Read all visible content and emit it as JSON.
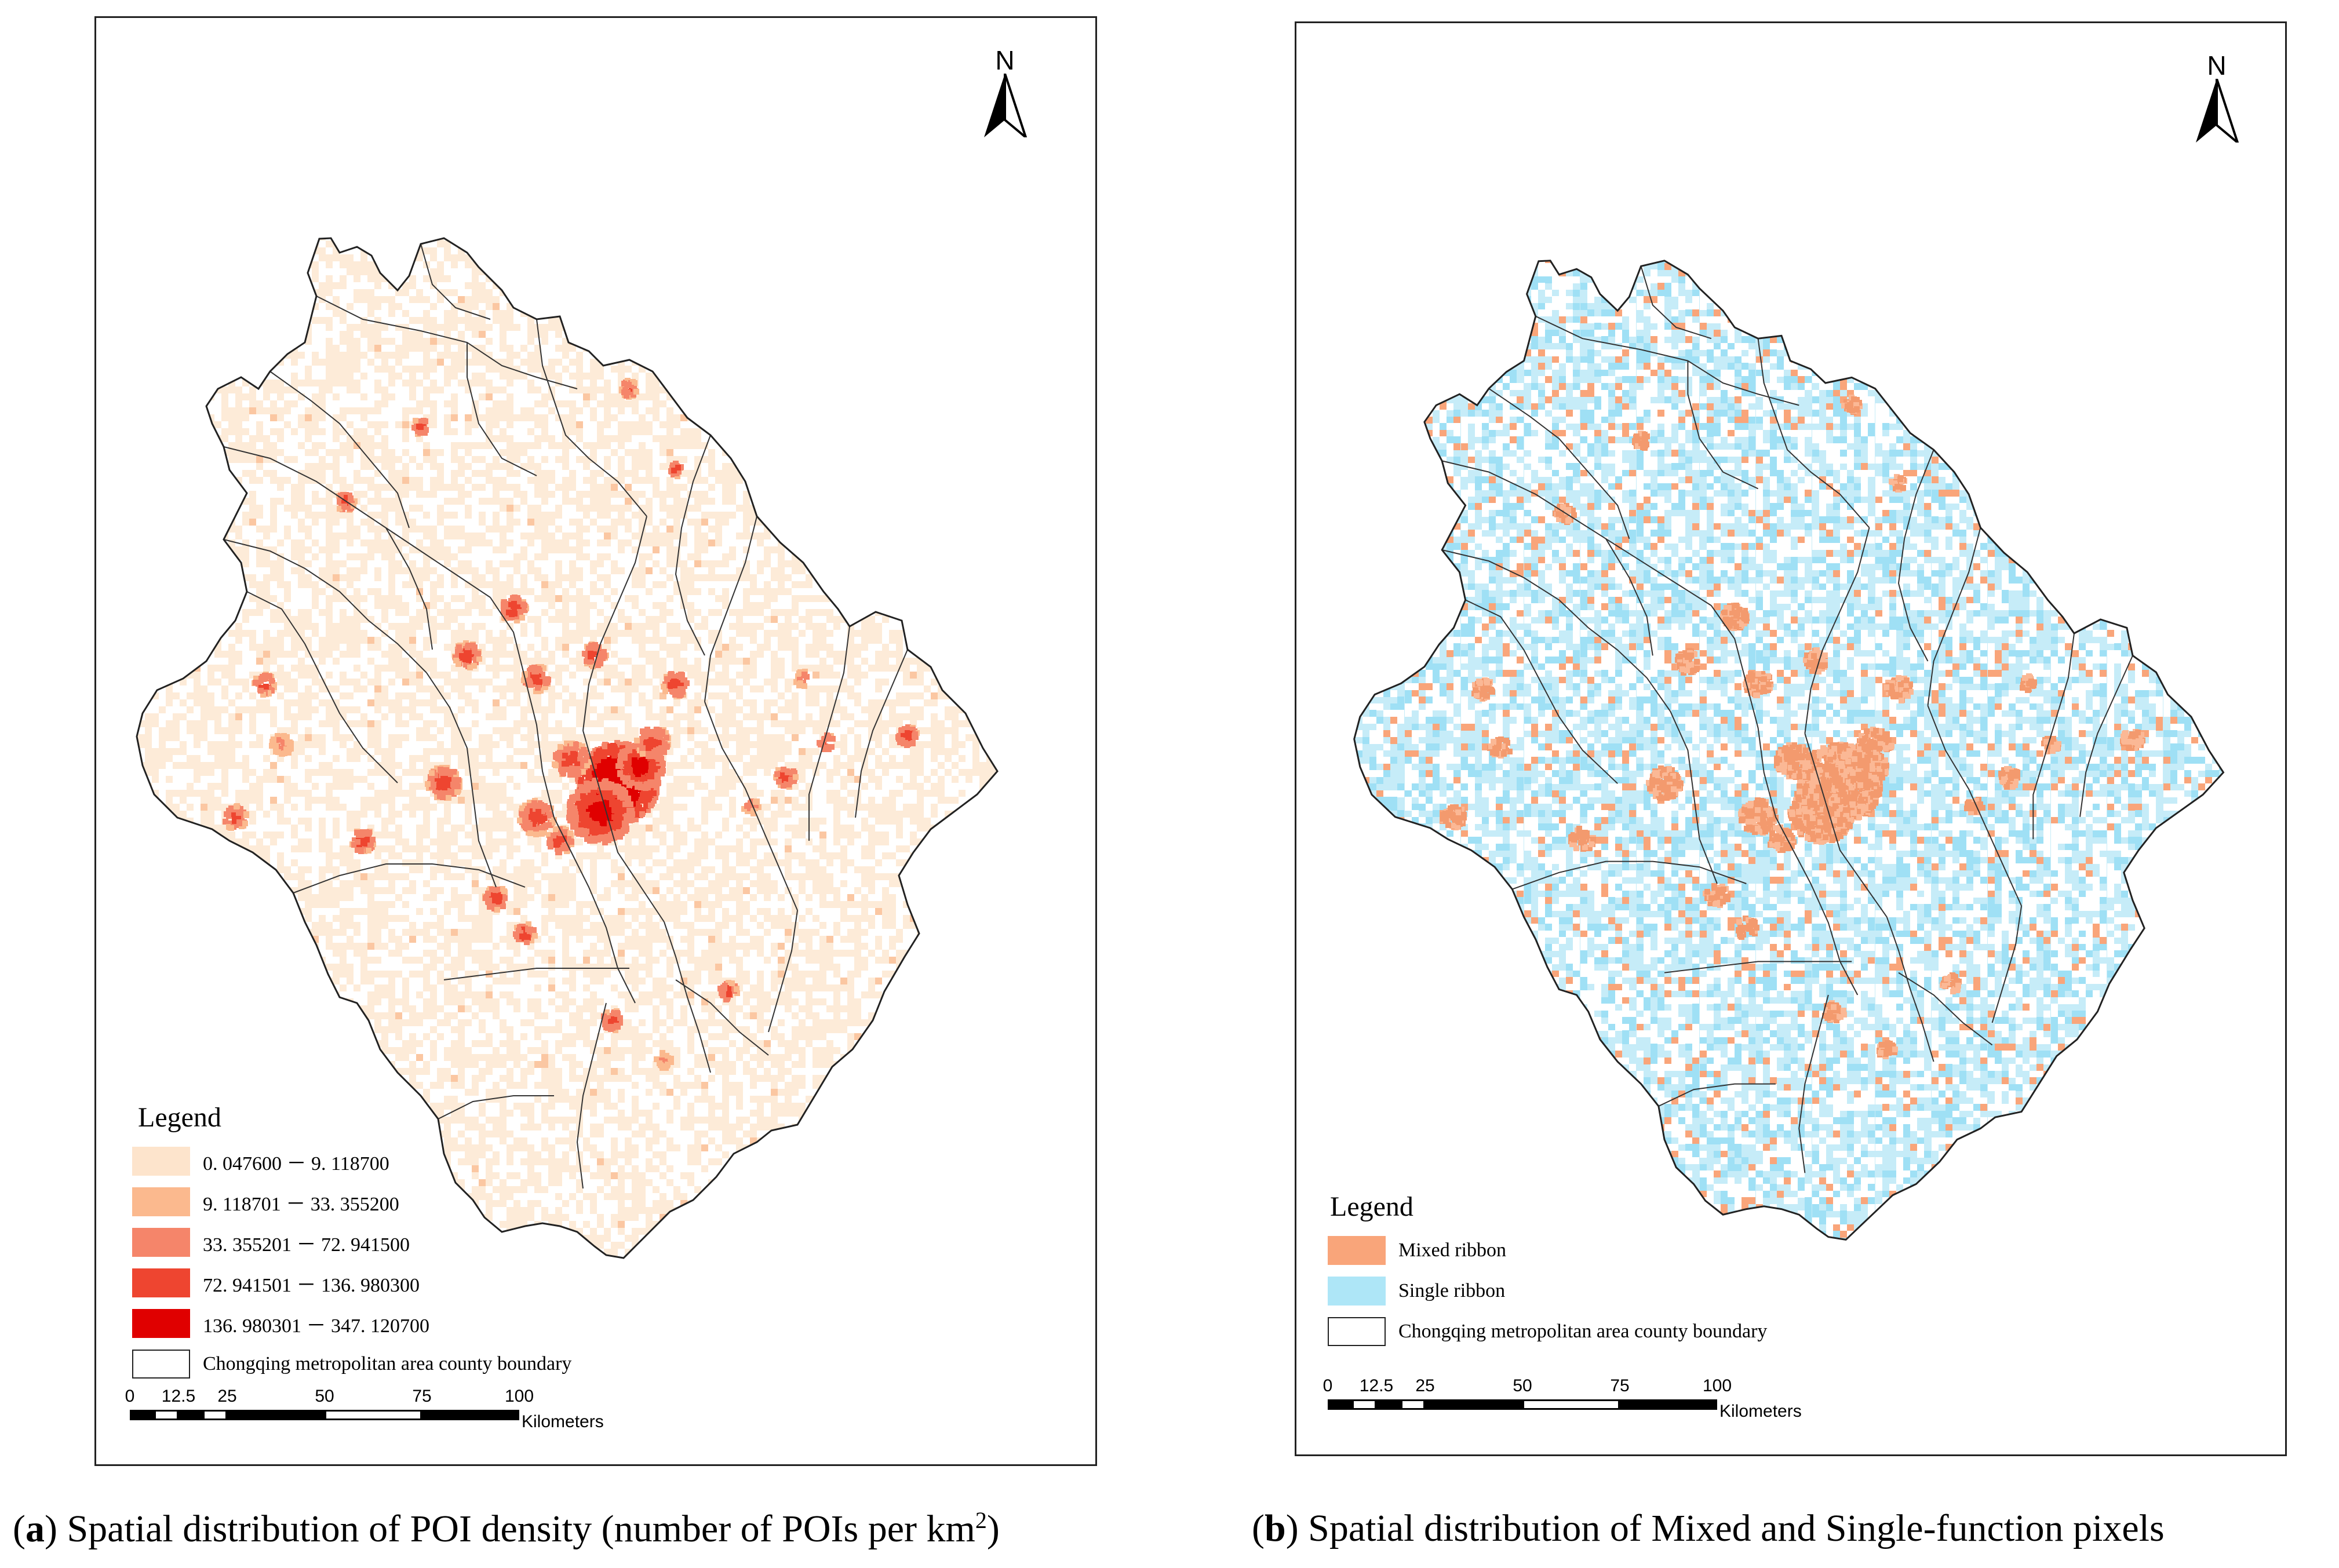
{
  "panels": [
    {
      "id": "a",
      "north": "N",
      "legend": {
        "title": "Legend",
        "items": [
          {
            "label": "0. 047600 － 9. 118700",
            "color": "#fde4cc"
          },
          {
            "label": "9. 118701 － 33. 355200",
            "color": "#fbb98e"
          },
          {
            "label": "33. 355201 － 72. 941500",
            "color": "#f5856a"
          },
          {
            "label": "72. 941501 － 136. 980300",
            "color": "#ee4530"
          },
          {
            "label": "136. 980301 － 347. 120700",
            "color": "#e00000"
          },
          {
            "label": "Chongqing metropolitan area county boundary",
            "color": "#ffffff"
          }
        ]
      },
      "scale": {
        "ticks": [
          "0",
          "12.5",
          "25",
          "50",
          "75",
          "100"
        ],
        "unit": "Kilometers"
      },
      "caption": {
        "letter": "a",
        "text": ") Spatial distribution of POI density (number of POIs per km",
        "sup": "2",
        "tail": ")"
      }
    },
    {
      "id": "b",
      "north": "N",
      "legend": {
        "title": "Legend",
        "items": [
          {
            "label": "Mixed ribbon",
            "color": "#f9a57a"
          },
          {
            "label": "Single ribbon",
            "color": "#aee6f7"
          },
          {
            "label": "Chongqing metropolitan area county boundary",
            "color": "#ffffff"
          }
        ]
      },
      "scale": {
        "ticks": [
          "0",
          "12.5",
          "25",
          "50",
          "75",
          "100"
        ],
        "unit": "Kilometers"
      },
      "caption": {
        "letter": "b",
        "text": ") Spatial distribution of Mixed and Single-function pixels",
        "sup": "",
        "tail": ""
      }
    }
  ]
}
